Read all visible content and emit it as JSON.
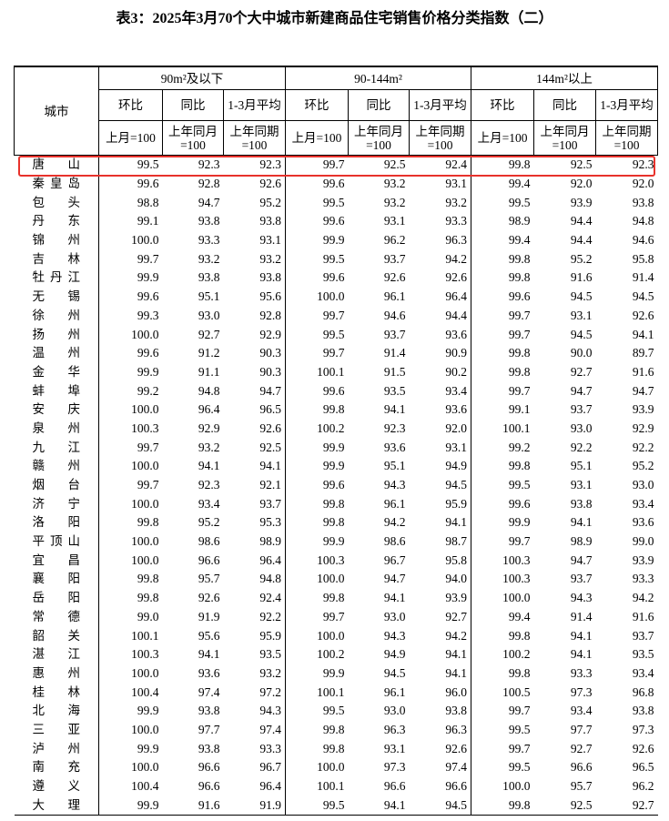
{
  "title": "表3：2025年3月70个大中城市新建商品住宅销售价格分类指数（二）",
  "table": {
    "city_header": "城市",
    "groups": [
      "90m²及以下",
      "90-144m²",
      "144m²以上"
    ],
    "subheaders": [
      "环比",
      "同比",
      "1-3月平均"
    ],
    "bases": [
      "上月=100",
      "上年同月=100",
      "上年同期=100"
    ],
    "rows": [
      {
        "city": "唐山",
        "values": [
          "99.5",
          "92.3",
          "92.3",
          "99.7",
          "92.5",
          "92.4",
          "99.8",
          "92.5",
          "92.3"
        ]
      },
      {
        "city": "秦皇岛",
        "values": [
          "99.6",
          "92.8",
          "92.6",
          "99.6",
          "93.2",
          "93.1",
          "99.4",
          "92.0",
          "92.0"
        ]
      },
      {
        "city": "包头",
        "values": [
          "98.8",
          "94.7",
          "95.2",
          "99.5",
          "93.2",
          "93.2",
          "99.5",
          "93.9",
          "93.8"
        ]
      },
      {
        "city": "丹东",
        "values": [
          "99.1",
          "93.8",
          "93.8",
          "99.6",
          "93.1",
          "93.3",
          "98.9",
          "94.4",
          "94.8"
        ]
      },
      {
        "city": "锦州",
        "values": [
          "100.0",
          "93.3",
          "93.1",
          "99.9",
          "96.2",
          "96.3",
          "99.4",
          "94.4",
          "94.6"
        ]
      },
      {
        "city": "吉林",
        "values": [
          "99.7",
          "93.2",
          "93.2",
          "99.5",
          "93.7",
          "94.2",
          "99.8",
          "95.2",
          "95.8"
        ]
      },
      {
        "city": "牡丹江",
        "values": [
          "99.9",
          "93.8",
          "93.8",
          "99.6",
          "92.6",
          "92.6",
          "99.8",
          "91.6",
          "91.4"
        ]
      },
      {
        "city": "无锡",
        "values": [
          "99.6",
          "95.1",
          "95.6",
          "100.0",
          "96.1",
          "96.4",
          "99.6",
          "94.5",
          "94.5"
        ]
      },
      {
        "city": "徐州",
        "values": [
          "99.3",
          "93.0",
          "92.8",
          "99.7",
          "94.6",
          "94.4",
          "99.7",
          "93.1",
          "92.6"
        ]
      },
      {
        "city": "扬州",
        "values": [
          "100.0",
          "92.7",
          "92.9",
          "99.5",
          "93.7",
          "93.6",
          "99.7",
          "94.5",
          "94.1"
        ]
      },
      {
        "city": "温州",
        "values": [
          "99.6",
          "91.2",
          "90.3",
          "99.7",
          "91.4",
          "90.9",
          "99.8",
          "90.0",
          "89.7"
        ]
      },
      {
        "city": "金华",
        "values": [
          "99.9",
          "91.1",
          "90.3",
          "100.1",
          "91.5",
          "90.2",
          "99.8",
          "92.7",
          "91.6"
        ]
      },
      {
        "city": "蚌埠",
        "values": [
          "99.2",
          "94.8",
          "94.7",
          "99.6",
          "93.5",
          "93.4",
          "99.7",
          "94.7",
          "94.7"
        ]
      },
      {
        "city": "安庆",
        "values": [
          "100.0",
          "96.4",
          "96.5",
          "99.8",
          "94.1",
          "93.6",
          "99.1",
          "93.7",
          "93.9"
        ]
      },
      {
        "city": "泉州",
        "values": [
          "100.3",
          "92.9",
          "92.6",
          "100.2",
          "92.3",
          "92.0",
          "100.1",
          "93.0",
          "92.9"
        ]
      },
      {
        "city": "九江",
        "values": [
          "99.7",
          "93.2",
          "92.5",
          "99.9",
          "93.6",
          "93.1",
          "99.2",
          "92.2",
          "92.2"
        ]
      },
      {
        "city": "赣州",
        "values": [
          "100.0",
          "94.1",
          "94.1",
          "99.9",
          "95.1",
          "94.9",
          "99.8",
          "95.1",
          "95.2"
        ]
      },
      {
        "city": "烟台",
        "values": [
          "99.7",
          "92.3",
          "92.1",
          "99.6",
          "94.3",
          "94.5",
          "99.5",
          "93.1",
          "93.0"
        ]
      },
      {
        "city": "济宁",
        "values": [
          "100.0",
          "93.4",
          "93.7",
          "99.8",
          "96.1",
          "95.9",
          "99.6",
          "93.8",
          "93.4"
        ]
      },
      {
        "city": "洛阳",
        "values": [
          "99.8",
          "95.2",
          "95.3",
          "99.8",
          "94.2",
          "94.1",
          "99.9",
          "94.1",
          "93.6"
        ]
      },
      {
        "city": "平顶山",
        "values": [
          "100.0",
          "98.6",
          "98.9",
          "99.9",
          "98.6",
          "98.7",
          "99.7",
          "98.9",
          "99.0"
        ]
      },
      {
        "city": "宜昌",
        "values": [
          "100.0",
          "96.6",
          "96.4",
          "100.3",
          "96.7",
          "95.8",
          "100.3",
          "94.7",
          "93.9"
        ]
      },
      {
        "city": "襄阳",
        "values": [
          "99.8",
          "95.7",
          "94.8",
          "100.0",
          "94.7",
          "94.0",
          "100.3",
          "93.7",
          "93.3"
        ]
      },
      {
        "city": "岳阳",
        "values": [
          "99.8",
          "92.6",
          "92.4",
          "99.8",
          "94.1",
          "93.9",
          "100.0",
          "94.3",
          "94.2"
        ]
      },
      {
        "city": "常德",
        "values": [
          "99.0",
          "91.9",
          "92.2",
          "99.7",
          "93.0",
          "92.7",
          "99.4",
          "91.4",
          "91.6"
        ]
      },
      {
        "city": "韶关",
        "values": [
          "100.1",
          "95.6",
          "95.9",
          "100.0",
          "94.3",
          "94.2",
          "99.8",
          "94.1",
          "93.7"
        ]
      },
      {
        "city": "湛江",
        "values": [
          "100.3",
          "94.1",
          "93.5",
          "100.2",
          "94.9",
          "94.1",
          "100.2",
          "94.1",
          "93.5"
        ]
      },
      {
        "city": "惠州",
        "values": [
          "100.0",
          "93.6",
          "93.2",
          "99.9",
          "94.5",
          "94.1",
          "99.8",
          "93.3",
          "93.4"
        ]
      },
      {
        "city": "桂林",
        "values": [
          "100.4",
          "97.4",
          "97.2",
          "100.1",
          "96.1",
          "96.0",
          "100.5",
          "97.3",
          "96.8"
        ]
      },
      {
        "city": "北海",
        "values": [
          "99.9",
          "93.8",
          "94.3",
          "99.5",
          "93.0",
          "93.8",
          "99.7",
          "93.4",
          "93.8"
        ]
      },
      {
        "city": "三亚",
        "values": [
          "100.0",
          "97.7",
          "97.4",
          "99.8",
          "96.3",
          "96.3",
          "99.5",
          "97.7",
          "97.3"
        ]
      },
      {
        "city": "泸州",
        "values": [
          "99.9",
          "93.8",
          "93.3",
          "99.8",
          "93.1",
          "92.6",
          "99.7",
          "92.7",
          "92.6"
        ]
      },
      {
        "city": "南充",
        "values": [
          "100.0",
          "96.6",
          "96.7",
          "100.0",
          "97.3",
          "97.4",
          "99.5",
          "96.6",
          "96.5"
        ]
      },
      {
        "city": "遵义",
        "values": [
          "100.4",
          "96.6",
          "96.4",
          "100.1",
          "96.6",
          "96.6",
          "100.0",
          "95.7",
          "96.2"
        ]
      },
      {
        "city": "大理",
        "values": [
          "99.9",
          "91.6",
          "91.9",
          "99.5",
          "94.1",
          "94.5",
          "99.8",
          "92.5",
          "92.7"
        ]
      }
    ]
  }
}
